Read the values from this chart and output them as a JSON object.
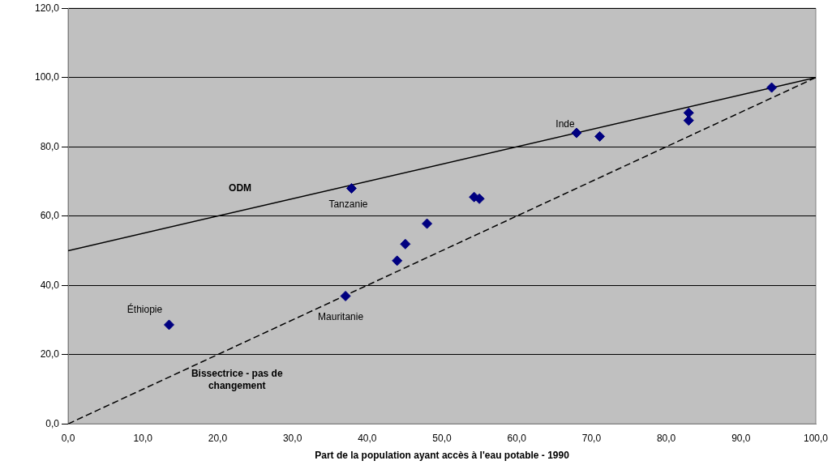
{
  "chart_data": {
    "type": "scatter",
    "xlabel": "Part de la population ayant accès à l'eau potable - 1990",
    "marker": "diamond",
    "grid": "y",
    "xlim": [
      0,
      100
    ],
    "ylim": [
      0,
      120
    ],
    "xticks": [
      {
        "value": 0,
        "label": "0,0"
      },
      {
        "value": 10,
        "label": "10,0"
      },
      {
        "value": 20,
        "label": "20,0"
      },
      {
        "value": 30,
        "label": "30,0"
      },
      {
        "value": 40,
        "label": "40,0"
      },
      {
        "value": 50,
        "label": "50,0"
      },
      {
        "value": 60,
        "label": "60,0"
      },
      {
        "value": 70,
        "label": "70,0"
      },
      {
        "value": 80,
        "label": "80,0"
      },
      {
        "value": 90,
        "label": "90,0"
      },
      {
        "value": 100,
        "label": "100,0"
      }
    ],
    "yticks": [
      {
        "value": 0,
        "label": "0,0"
      },
      {
        "value": 20,
        "label": "20,0"
      },
      {
        "value": 40,
        "label": "40,0"
      },
      {
        "value": 60,
        "label": "60,0"
      },
      {
        "value": 80,
        "label": "80,0"
      },
      {
        "value": 100,
        "label": "100,0"
      },
      {
        "value": 120,
        "label": "120,0"
      }
    ],
    "series": [
      {
        "type": "scatter",
        "color": "#000080",
        "x": [
          13.5,
          37.1,
          37.9,
          44.0,
          45.1,
          48.0,
          54.3,
          55.0,
          68.0,
          71.1,
          83.0,
          83.0,
          94.1
        ],
        "values": [
          28.6,
          36.9,
          68.0,
          47.1,
          51.9,
          57.8,
          65.5,
          65.0,
          84.0,
          83.0,
          89.8,
          87.6,
          97.1
        ]
      },
      {
        "type": "line",
        "color": "#000000",
        "line_style": "solid",
        "marker": "none",
        "x": [
          0,
          100
        ],
        "values": [
          50,
          100
        ]
      },
      {
        "type": "line",
        "color": "#000000",
        "line_style": "dashed",
        "marker": "none",
        "x": [
          0,
          100
        ],
        "values": [
          0,
          100
        ]
      }
    ],
    "annotations": [
      {
        "text": "ODM",
        "x": 23.0,
        "y": 61.5
      },
      {
        "text": "Tanzanie",
        "x": 37.9,
        "y": 68.0
      },
      {
        "text": "Inde",
        "x": 68.0,
        "y": 84.0
      },
      {
        "text": "Éthiopie",
        "x": 13.5,
        "y": 28.6
      },
      {
        "text": "Mauritanie",
        "x": 37.1,
        "y": 36.9
      },
      {
        "text": "Bissectrice - pas de changement",
        "x": 21.5,
        "y": 21.5
      }
    ]
  }
}
